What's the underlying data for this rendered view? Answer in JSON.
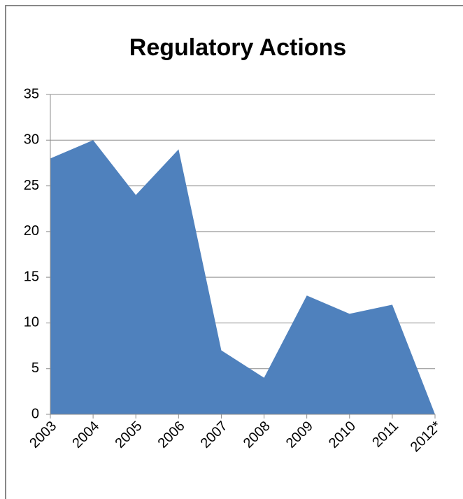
{
  "chart_data": {
    "type": "area",
    "title": "Regulatory Actions",
    "categories": [
      "2003",
      "2004",
      "2005",
      "2006",
      "2007",
      "2008",
      "2009",
      "2010",
      "2011",
      "2012*"
    ],
    "values": [
      28,
      30,
      24,
      29,
      7,
      4,
      13,
      11,
      12,
      0
    ],
    "color": "#4f81bd",
    "ylim": [
      0,
      35
    ],
    "yticks": [
      0,
      5,
      10,
      15,
      20,
      25,
      30,
      35
    ],
    "grid": true
  }
}
